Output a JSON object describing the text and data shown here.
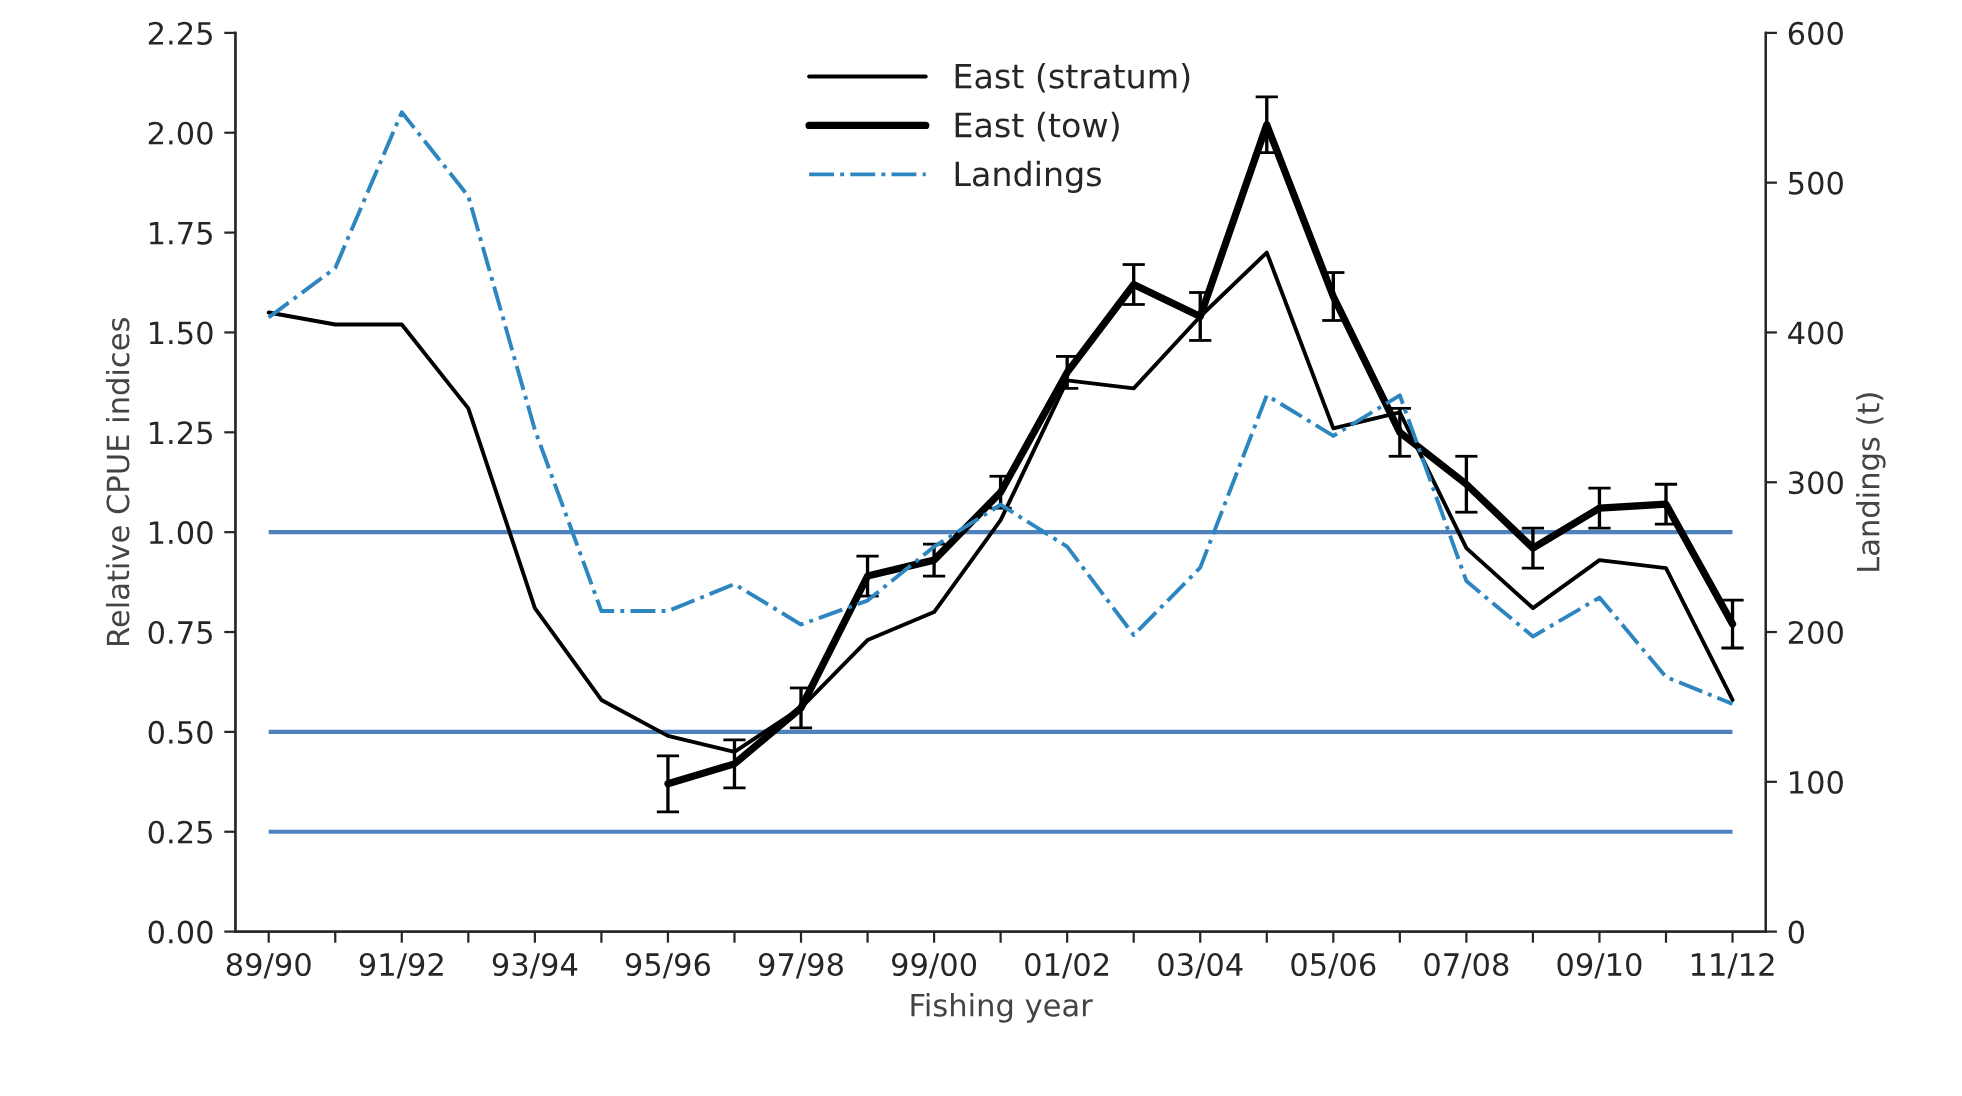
{
  "chart_data": {
    "type": "line",
    "xlabel": "Fishing year",
    "ylabel": "Relative CPUE indices",
    "y2label": "Landings (t)",
    "categories": [
      "89/90",
      null,
      "91/92",
      null,
      "93/94",
      null,
      "95/96",
      null,
      "97/98",
      null,
      "99/00",
      null,
      "01/02",
      null,
      "03/04",
      null,
      "05/06",
      null,
      "07/08",
      null,
      "09/10",
      null,
      "11/12"
    ],
    "series": [
      {
        "name": "East (stratum)",
        "color": "#000000",
        "line_style": "solid",
        "values": [
          1.55,
          1.52,
          1.52,
          1.31,
          0.81,
          0.58,
          0.49,
          0.45,
          0.56,
          0.73,
          0.8,
          1.03,
          1.38,
          1.36,
          1.54,
          1.7,
          1.26,
          1.3,
          0.96,
          0.81,
          0.93,
          0.91,
          0.58
        ]
      },
      {
        "name": "East (tow)",
        "color": "#000000",
        "line_style": "solid",
        "values": [
          null,
          null,
          null,
          null,
          null,
          null,
          0.37,
          0.42,
          0.56,
          0.89,
          0.93,
          1.1,
          1.4,
          1.62,
          1.54,
          2.02,
          1.59,
          1.25,
          1.12,
          0.96,
          1.06,
          1.07,
          0.77
        ],
        "errors": [
          null,
          null,
          null,
          null,
          null,
          null,
          0.07,
          0.06,
          0.05,
          0.05,
          0.04,
          0.04,
          0.04,
          0.05,
          0.06,
          0.07,
          0.06,
          0.06,
          0.07,
          0.05,
          0.05,
          0.05,
          0.06
        ]
      },
      {
        "name": "Landings",
        "color": "#2e86c1",
        "line_style": "dashdot",
        "axis": "y2",
        "values": [
          410,
          443,
          547,
          491,
          335,
          214,
          214,
          232,
          205,
          221,
          257,
          285,
          257,
          198,
          243,
          358,
          331,
          358,
          234,
          197,
          223,
          170,
          152
        ]
      }
    ],
    "ylim": [
      0,
      2.25
    ],
    "yticks": [
      {
        "value": 0,
        "label": "0.00"
      },
      {
        "value": 0.25,
        "label": "0.25"
      },
      {
        "value": 0.5,
        "label": "0.50"
      },
      {
        "value": 0.75,
        "label": "0.75"
      },
      {
        "value": 1,
        "label": "1.00"
      },
      {
        "value": 1.25,
        "label": "1.25"
      },
      {
        "value": 1.5,
        "label": "1.50"
      },
      {
        "value": 1.75,
        "label": "1.75"
      },
      {
        "value": 2,
        "label": "2.00"
      },
      {
        "value": 2.25,
        "label": "2.25"
      }
    ],
    "y2lim": [
      0,
      600
    ],
    "y2ticks": [
      0,
      100,
      200,
      300,
      400,
      500,
      600
    ],
    "ref_lines": [
      {
        "axis": "y",
        "value": 1.0,
        "color": "#4f81bd"
      },
      {
        "axis": "y",
        "value": 0.5,
        "color": "#4f81bd"
      },
      {
        "axis": "y",
        "value": 0.25,
        "color": "#4f81bd"
      }
    ],
    "grid": false,
    "legend": "top",
    "marker": "none"
  }
}
